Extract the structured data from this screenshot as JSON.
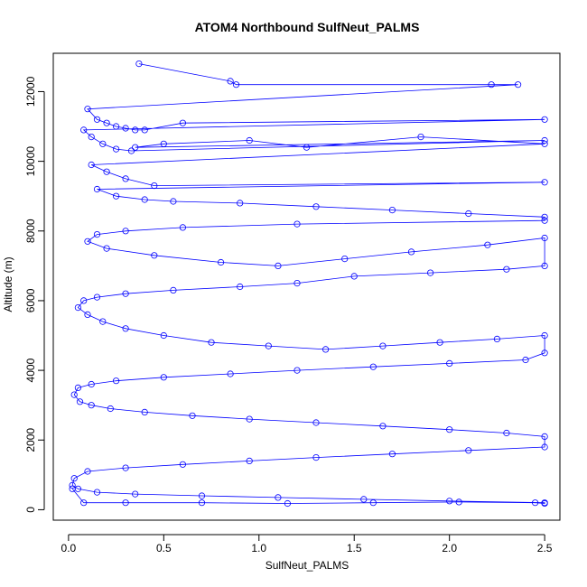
{
  "chart_data": {
    "type": "line",
    "title": "ATOM4 Northbound SulfNeut_PALMS",
    "xlabel": "SulfNeut_PALMS",
    "ylabel": "Altitude (m)",
    "xlim": [
      -0.08,
      2.58
    ],
    "ylim": [
      -300,
      13100
    ],
    "x_ticks": [
      "0.0",
      "0.5",
      "1.0",
      "1.5",
      "2.0",
      "2.5"
    ],
    "x_tick_values": [
      0,
      0.5,
      1,
      1.5,
      2,
      2.5
    ],
    "y_ticks": [
      "0",
      "2000",
      "4000",
      "6000",
      "8000",
      "10000",
      "12000"
    ],
    "y_tick_values": [
      0,
      2000,
      4000,
      6000,
      8000,
      10000,
      12000
    ],
    "grid": false,
    "legend": "none",
    "series_color": "#0000ff",
    "marker": "open-circle",
    "series": [
      {
        "x": [
          0.37,
          0.85,
          0.88,
          2.22,
          2.36,
          0.1,
          0.15,
          0.2,
          0.25,
          0.3,
          0.35,
          0.4,
          0.6,
          2.5,
          0.08,
          0.12,
          0.18,
          0.25,
          0.33,
          2.5,
          0.35,
          0.5,
          0.95,
          1.25,
          1.85,
          2.5,
          0.12,
          0.2,
          0.3,
          0.45,
          2.5,
          0.15,
          0.25,
          0.4,
          0.55,
          0.9,
          1.3,
          1.7,
          2.1,
          2.5,
          2.5,
          1.2,
          0.6,
          0.3,
          0.15,
          0.1,
          0.2,
          0.45,
          0.8,
          1.1,
          1.45,
          1.8,
          2.2,
          2.5,
          2.5,
          2.3,
          1.9,
          1.5,
          1.2,
          0.9,
          0.55,
          0.3,
          0.15,
          0.08,
          0.05,
          0.1,
          0.18,
          0.3,
          0.5,
          0.75,
          1.05,
          1.35,
          1.65,
          1.95,
          2.25,
          2.5,
          2.5,
          2.4,
          2.0,
          1.6,
          1.2,
          0.85,
          0.5,
          0.25,
          0.12,
          0.05,
          0.03,
          0.06,
          0.12,
          0.22,
          0.4,
          0.65,
          0.95,
          1.3,
          1.65,
          2.0,
          2.3,
          2.5,
          2.5,
          2.1,
          1.7,
          1.3,
          0.95,
          0.6,
          0.3,
          0.1,
          0.03,
          0.02,
          0.05,
          0.15,
          0.35,
          0.7,
          1.1,
          1.55,
          2.0,
          2.5,
          2.5,
          2.45,
          2.05,
          1.6,
          1.15,
          0.7,
          0.3,
          0.08,
          0.02
        ],
        "y": [
          12800,
          12300,
          12200,
          12200,
          12200,
          11500,
          11200,
          11100,
          11000,
          10950,
          10900,
          10900,
          11100,
          11200,
          10900,
          10700,
          10500,
          10350,
          10300,
          10600,
          10400,
          10500,
          10600,
          10400,
          10700,
          10500,
          9900,
          9700,
          9500,
          9300,
          9400,
          9200,
          9000,
          8900,
          8850,
          8800,
          8700,
          8600,
          8500,
          8400,
          8300,
          8200,
          8100,
          8000,
          7900,
          7700,
          7500,
          7300,
          7100,
          7000,
          7200,
          7400,
          7600,
          7800,
          7000,
          6900,
          6800,
          6700,
          6500,
          6400,
          6300,
          6200,
          6100,
          6000,
          5800,
          5600,
          5400,
          5200,
          5000,
          4800,
          4700,
          4600,
          4700,
          4800,
          4900,
          5000,
          4500,
          4300,
          4200,
          4100,
          4000,
          3900,
          3800,
          3700,
          3600,
          3500,
          3300,
          3100,
          3000,
          2900,
          2800,
          2700,
          2600,
          2500,
          2400,
          2300,
          2200,
          2100,
          1800,
          1700,
          1600,
          1500,
          1400,
          1300,
          1200,
          1100,
          900,
          700,
          600,
          500,
          450,
          400,
          350,
          300,
          250,
          200,
          180,
          200,
          220,
          200,
          180,
          200,
          200,
          200,
          600
        ]
      }
    ]
  }
}
